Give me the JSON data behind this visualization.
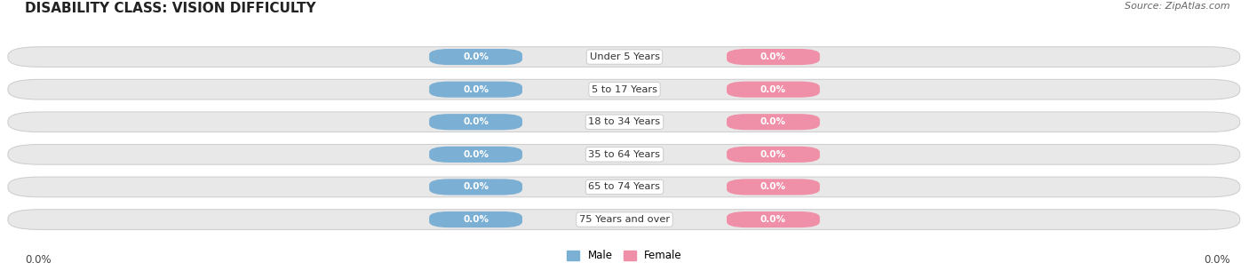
{
  "title": "DISABILITY CLASS: VISION DIFFICULTY",
  "source_text": "Source: ZipAtlas.com",
  "categories": [
    "Under 5 Years",
    "5 to 17 Years",
    "18 to 34 Years",
    "35 to 64 Years",
    "65 to 74 Years",
    "75 Years and over"
  ],
  "male_values": [
    0.0,
    0.0,
    0.0,
    0.0,
    0.0,
    0.0
  ],
  "female_values": [
    0.0,
    0.0,
    0.0,
    0.0,
    0.0,
    0.0
  ],
  "male_color": "#7bafd4",
  "female_color": "#f090a8",
  "male_label": "Male",
  "female_label": "Female",
  "bar_bg_color": "#e8e8e8",
  "bar_border_color": "#cccccc",
  "x_left_label": "0.0%",
  "x_right_label": "0.0%",
  "title_fontsize": 11,
  "bg_color": "#ffffff"
}
